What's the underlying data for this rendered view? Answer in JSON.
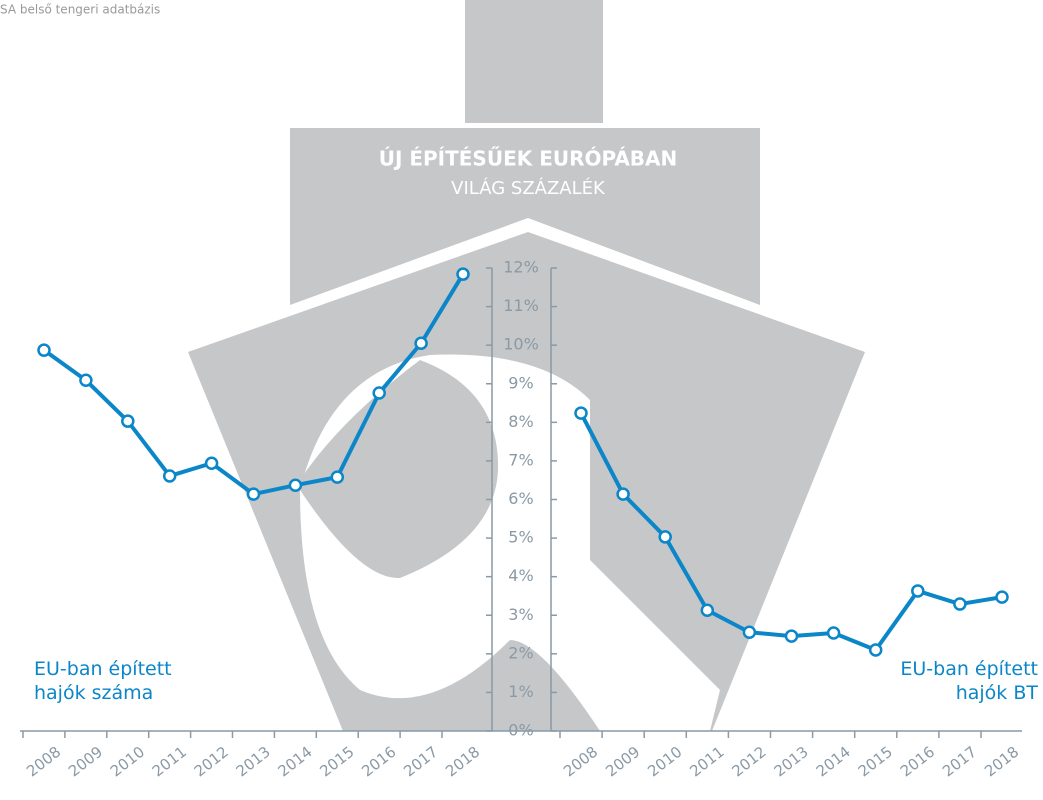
{
  "source": "SA belső tengeri adatbázis",
  "chart_data": {
    "type": "line",
    "title": "ÚJ ÉPÍTÉSŰEK EURÓPÁBAN",
    "subtitle": "VILÁG SZÁZALÉK",
    "categories": [
      "2008",
      "2009",
      "2010",
      "2011",
      "2012",
      "2013",
      "2014",
      "2015",
      "2016",
      "2017",
      "2018"
    ],
    "series": [
      {
        "name": "EU-ban épített hajók száma",
        "color": "#0a86c9",
        "values": [
          9.87,
          9.09,
          8.03,
          6.61,
          6.94,
          6.14,
          6.37,
          6.58,
          8.76,
          10.05,
          11.84
        ]
      },
      {
        "name": "EU-ban épített hajók BT",
        "color": "#0a86c9",
        "values": [
          8.24,
          6.14,
          5.03,
          3.13,
          2.56,
          2.46,
          2.54,
          2.1,
          3.63,
          3.29,
          3.47
        ]
      }
    ],
    "ylim": [
      0,
      12
    ],
    "yticks": [
      {
        "value": 0,
        "label": "0%"
      },
      {
        "value": 1,
        "label": "1%"
      },
      {
        "value": 2,
        "label": "2%"
      },
      {
        "value": 3,
        "label": "3%"
      },
      {
        "value": 4,
        "label": "4%"
      },
      {
        "value": 5,
        "label": "5%"
      },
      {
        "value": 6,
        "label": "6%"
      },
      {
        "value": 7,
        "label": "7%"
      },
      {
        "value": 8,
        "label": "8%"
      },
      {
        "value": 9,
        "label": "9%"
      },
      {
        "value": 10,
        "label": "10%"
      },
      {
        "value": 11,
        "label": "11%"
      },
      {
        "value": 12,
        "label": "12%"
      }
    ]
  }
}
